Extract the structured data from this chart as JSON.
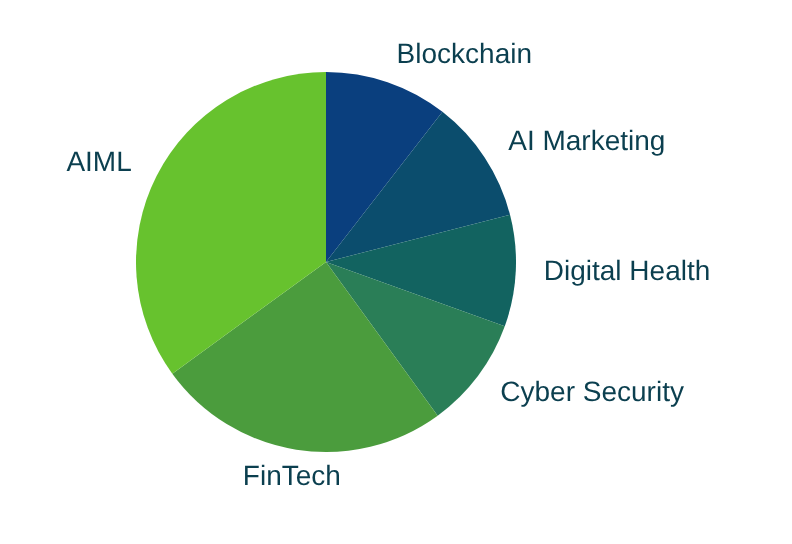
{
  "chart_data": {
    "type": "pie",
    "categories": [
      "Blockchain",
      "AI Marketing",
      "Digital Health",
      "Cyber Security",
      "FinTech",
      "AIML"
    ],
    "values": [
      10.5,
      10.5,
      9.5,
      9.5,
      25,
      35
    ],
    "colors": [
      "#0a3f7e",
      "#0b4d6d",
      "#126360",
      "#2a7e57",
      "#4b9c3d",
      "#67c22e"
    ],
    "legend": false
  }
}
